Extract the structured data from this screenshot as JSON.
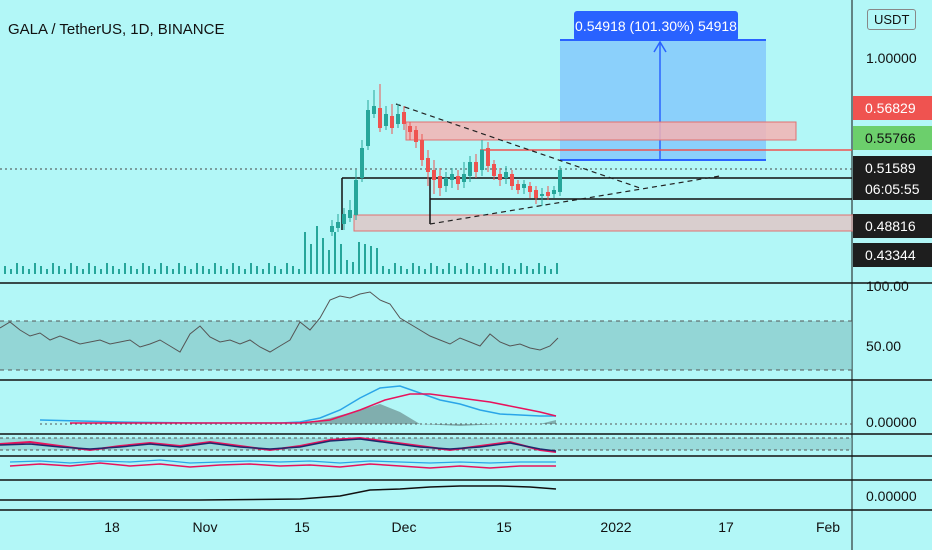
{
  "header": {
    "title": "GALA / TetherUS, 1D, BINANCE"
  },
  "currency_button": "USDT",
  "measure_label": "0.54918 (101.30%) 54918",
  "price_axis": {
    "top_value": "1.00000",
    "labels": [
      {
        "text": "0.56829",
        "style": "red"
      },
      {
        "text": "0.55766",
        "style": "green"
      },
      {
        "text": "0.51589",
        "style": "dark"
      },
      {
        "text": "0.48816",
        "style": "dark"
      },
      {
        "text": "0.43344",
        "style": "dark"
      }
    ],
    "countdown": "06:05:55"
  },
  "indicator_axis": {
    "rsi_top": "100.00",
    "rsi_mid": "50.00",
    "macd_zero": "0.00000",
    "bottom_zero": "0.00000"
  },
  "time_axis": [
    "18",
    "Nov",
    "15",
    "Dec",
    "15",
    "2022",
    "17",
    "Feb"
  ],
  "colors": {
    "background": "#b2f7f7",
    "up_candle": "#26a69a",
    "down_candle": "#ef5350",
    "measure": "#2962ff",
    "rsi_band": "#7fbfbf"
  }
}
